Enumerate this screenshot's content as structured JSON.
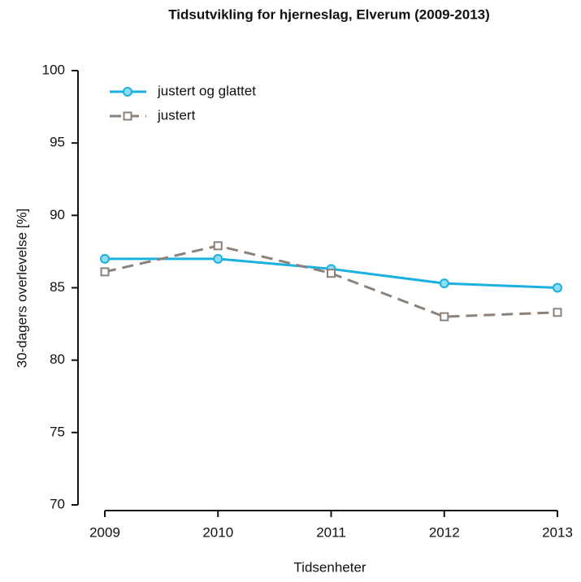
{
  "chart_data": {
    "type": "line",
    "title": "Tidsutvikling for hjerneslag, Elverum (2009-2013)",
    "xlabel": "Tidsenheter",
    "ylabel": "30-dagers overlevelse [%]",
    "x": [
      2009,
      2010,
      2011,
      2012,
      2013
    ],
    "xlim": [
      2009,
      2013
    ],
    "xticks": [
      2009,
      2010,
      2011,
      2012,
      2013
    ],
    "ylim": [
      70,
      100
    ],
    "yticks": [
      70,
      75,
      80,
      85,
      90,
      95,
      100
    ],
    "legend": "upper left",
    "series": [
      {
        "name": "justert og glattet",
        "color": "#1ab1e0",
        "marker": "circle",
        "dashed": false,
        "values": [
          87.0,
          87.0,
          86.3,
          85.3,
          85.0
        ]
      },
      {
        "name": "justert",
        "color": "#8c8279",
        "marker": "square",
        "dashed": true,
        "values": [
          86.1,
          87.9,
          86.0,
          83.0,
          83.3
        ]
      }
    ]
  }
}
